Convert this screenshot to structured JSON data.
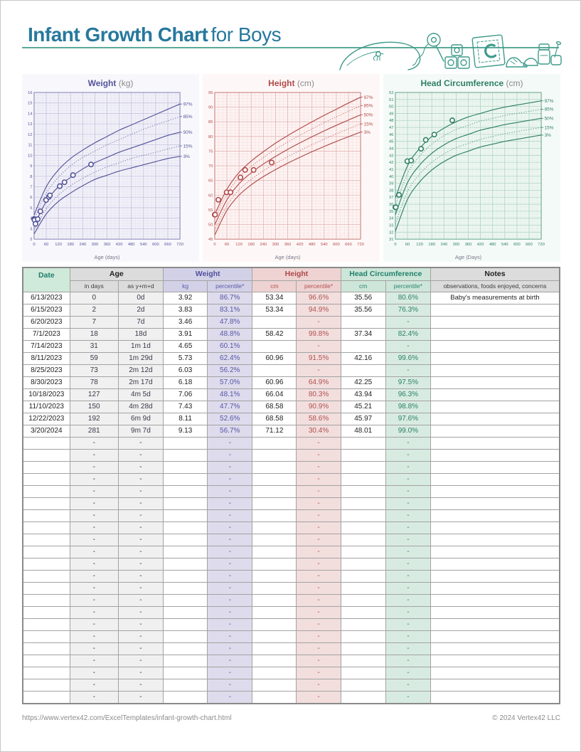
{
  "page": {
    "title_bold": "Infant Growth Chart",
    "title_rest": "for Boys",
    "footer_url": "https://www.vertex42.com/ExcelTemplates/infant-growth-chart.html",
    "footer_copyright": "© 2024 Vertex42 LLC",
    "accent_color": "#27789d",
    "rule_color": "#5cab99",
    "illustration": "baby toys line art: pillow with bird, rattle, alphabet blocks with letter C, baby shoes, food jars with spoon"
  },
  "chart_data": [
    {
      "type": "line",
      "id": "weight",
      "title": "Weight",
      "unit": "(kg)",
      "xlabel": "Age (days)",
      "xlim": [
        0,
        720
      ],
      "x_major": 60,
      "x_minor": 20,
      "ylim": [
        2,
        16
      ],
      "y_major": 1,
      "y_minor": 0.25,
      "color": "#54549a",
      "grid_minor": "#e4e3f1",
      "grid_major": "#c5c3de",
      "plot_bg": "#f1f0f8",
      "panel_bg": "#f8f7fb",
      "legend_position": "right",
      "x_curve": [
        0,
        60,
        120,
        180,
        240,
        300,
        360,
        420,
        480,
        540,
        600,
        660,
        720
      ],
      "series": [
        {
          "name": "97%",
          "style": "solid",
          "values": [
            4.3,
            7.0,
            8.6,
            9.7,
            10.5,
            11.2,
            11.8,
            12.4,
            12.9,
            13.4,
            13.9,
            14.4,
            14.9
          ]
        },
        {
          "name": "85%",
          "style": "dotted",
          "values": [
            3.9,
            6.4,
            7.9,
            9.0,
            9.8,
            10.4,
            11.0,
            11.5,
            12.0,
            12.5,
            12.9,
            13.3,
            13.7
          ]
        },
        {
          "name": "50%",
          "style": "solid",
          "values": [
            3.3,
            5.6,
            7.0,
            7.9,
            8.7,
            9.3,
            9.8,
            10.3,
            10.7,
            11.1,
            11.5,
            11.9,
            12.2
          ]
        },
        {
          "name": "15%",
          "style": "dotted",
          "values": [
            2.9,
            4.9,
            6.2,
            7.1,
            7.8,
            8.4,
            8.9,
            9.3,
            9.7,
            10.0,
            10.3,
            10.6,
            10.9
          ]
        },
        {
          "name": "3%",
          "style": "solid",
          "values": [
            2.5,
            4.4,
            5.6,
            6.4,
            7.1,
            7.7,
            8.1,
            8.5,
            8.8,
            9.1,
            9.4,
            9.7,
            9.9
          ]
        }
      ],
      "points": {
        "x": [
          0,
          2,
          7,
          18,
          31,
          59,
          73,
          78,
          127,
          150,
          192,
          281
        ],
        "y": [
          3.92,
          3.83,
          3.46,
          3.91,
          4.65,
          5.73,
          6.03,
          6.18,
          7.06,
          7.43,
          8.11,
          9.13
        ]
      }
    },
    {
      "type": "line",
      "id": "height",
      "title": "Height",
      "unit": "(cm)",
      "xlabel": "Age (days)",
      "xlim": [
        0,
        720
      ],
      "x_major": 60,
      "x_minor": 20,
      "ylim": [
        45,
        95
      ],
      "y_major": 5,
      "y_minor": 1,
      "color": "#b14a4a",
      "grid_minor": "#f5dcdb",
      "grid_major": "#e3b7b6",
      "plot_bg": "#fdf4f3",
      "panel_bg": "#fdf8f7",
      "legend_position": "right",
      "x_curve": [
        0,
        60,
        120,
        180,
        240,
        300,
        360,
        420,
        480,
        540,
        600,
        660,
        720
      ],
      "series": [
        {
          "name": "97%",
          "style": "solid",
          "values": [
            53.4,
            62.0,
            67.7,
            71.6,
            74.8,
            77.7,
            80.3,
            82.7,
            85.0,
            87.2,
            89.3,
            91.4,
            93.4
          ]
        },
        {
          "name": "85%",
          "style": "dotted",
          "values": [
            51.8,
            60.4,
            66.0,
            69.8,
            72.9,
            75.6,
            78.1,
            80.4,
            82.6,
            84.7,
            86.7,
            88.6,
            90.5
          ]
        },
        {
          "name": "50%",
          "style": "solid",
          "values": [
            49.9,
            58.4,
            63.9,
            67.6,
            70.6,
            73.2,
            75.6,
            77.8,
            79.9,
            81.9,
            83.8,
            85.6,
            87.4
          ]
        },
        {
          "name": "15%",
          "style": "dotted",
          "values": [
            48.0,
            56.4,
            61.8,
            65.4,
            68.3,
            70.8,
            73.1,
            75.2,
            77.2,
            79.1,
            80.9,
            82.6,
            84.3
          ]
        },
        {
          "name": "3%",
          "style": "solid",
          "values": [
            46.4,
            54.8,
            60.0,
            63.5,
            66.3,
            68.7,
            70.9,
            72.9,
            74.8,
            76.6,
            78.3,
            79.9,
            81.5
          ]
        }
      ],
      "points": {
        "x": [
          0,
          2,
          18,
          59,
          78,
          127,
          150,
          192,
          281
        ],
        "y": [
          53.34,
          53.34,
          58.42,
          60.96,
          60.96,
          66.04,
          68.58,
          68.58,
          71.12
        ]
      }
    },
    {
      "type": "line",
      "id": "head",
      "title": "Head Circumference",
      "unit": "(cm)",
      "xlabel": "Age (Days)",
      "xlim": [
        0,
        720
      ],
      "x_major": 60,
      "x_minor": 20,
      "ylim": [
        31,
        52
      ],
      "y_major": 1,
      "y_minor": 0.25,
      "color": "#2e7f66",
      "grid_minor": "#dceee4",
      "grid_major": "#afd4c4",
      "plot_bg": "#eff7f2",
      "panel_bg": "#f4faf7",
      "legend_position": "right",
      "x_curve": [
        0,
        60,
        120,
        180,
        240,
        300,
        360,
        420,
        480,
        540,
        600,
        660,
        720
      ],
      "series": [
        {
          "name": "97%",
          "style": "solid",
          "values": [
            36.9,
            41.5,
            44.0,
            45.7,
            46.9,
            47.8,
            48.5,
            49.0,
            49.5,
            49.9,
            50.2,
            50.5,
            50.8
          ]
        },
        {
          "name": "85%",
          "style": "dotted",
          "values": [
            35.8,
            40.4,
            42.9,
            44.6,
            45.8,
            46.7,
            47.3,
            47.9,
            48.3,
            48.7,
            49.0,
            49.3,
            49.6
          ]
        },
        {
          "name": "50%",
          "style": "solid",
          "values": [
            34.5,
            39.1,
            41.6,
            43.3,
            44.5,
            45.4,
            46.0,
            46.6,
            47.0,
            47.4,
            47.7,
            48.0,
            48.3
          ]
        },
        {
          "name": "15%",
          "style": "dotted",
          "values": [
            33.2,
            37.8,
            40.3,
            42.0,
            43.2,
            44.1,
            44.7,
            45.3,
            45.7,
            46.1,
            46.4,
            46.7,
            47.0
          ]
        },
        {
          "name": "3%",
          "style": "solid",
          "values": [
            32.1,
            36.7,
            39.2,
            40.9,
            42.1,
            43.0,
            43.6,
            44.2,
            44.6,
            45.0,
            45.3,
            45.6,
            45.9
          ]
        }
      ],
      "points": {
        "x": [
          0,
          2,
          18,
          59,
          78,
          127,
          150,
          192,
          281
        ],
        "y": [
          35.56,
          35.56,
          37.34,
          42.16,
          42.25,
          43.94,
          45.21,
          45.97,
          48.01
        ]
      }
    }
  ],
  "table": {
    "header": {
      "date": "Date",
      "age": "Age",
      "age_sub": [
        "in days",
        "as y+m+d"
      ],
      "weight": "Weight",
      "weight_sub": [
        "kg",
        "percentile*"
      ],
      "height": "Height",
      "height_sub": [
        "cm",
        "percentile*"
      ],
      "head": "Head Circumference",
      "head_sub": [
        "cm",
        "percentile*"
      ],
      "notes": "Notes",
      "notes_sub": "observations, foods enjoyed, concerns"
    },
    "rows": [
      [
        "6/13/2023",
        "0",
        "0d",
        "3.92",
        "86.7%",
        "53.34",
        "96.6%",
        "35.56",
        "80.6%",
        "Baby's measurements at birth"
      ],
      [
        "6/15/2023",
        "2",
        "2d",
        "3.83",
        "83.1%",
        "53.34",
        "94.9%",
        "35.56",
        "76.3%",
        ""
      ],
      [
        "6/20/2023",
        "7",
        "7d",
        "3.46",
        "47.8%",
        "",
        "-",
        "",
        "-",
        ""
      ],
      [
        "7/1/2023",
        "18",
        "18d",
        "3.91",
        "48.8%",
        "58.42",
        "99.8%",
        "37.34",
        "82.4%",
        ""
      ],
      [
        "7/14/2023",
        "31",
        "1m 1d",
        "4.65",
        "60.1%",
        "",
        "-",
        "",
        "-",
        ""
      ],
      [
        "8/11/2023",
        "59",
        "1m 29d",
        "5.73",
        "62.4%",
        "60.96",
        "91.5%",
        "42.16",
        "99.6%",
        ""
      ],
      [
        "8/25/2023",
        "73",
        "2m 12d",
        "6.03",
        "56.2%",
        "",
        "-",
        "",
        "-",
        ""
      ],
      [
        "8/30/2023",
        "78",
        "2m 17d",
        "6.18",
        "57.0%",
        "60.96",
        "64.9%",
        "42.25",
        "97.5%",
        ""
      ],
      [
        "10/18/2023",
        "127",
        "4m 5d",
        "7.06",
        "48.1%",
        "66.04",
        "80.3%",
        "43.94",
        "96.3%",
        ""
      ],
      [
        "11/10/2023",
        "150",
        "4m 28d",
        "7.43",
        "47.7%",
        "68.58",
        "90.9%",
        "45.21",
        "98.8%",
        ""
      ],
      [
        "12/22/2023",
        "192",
        "6m 9d",
        "8.11",
        "52.6%",
        "68.58",
        "58.6%",
        "45.97",
        "97.6%",
        ""
      ],
      [
        "3/20/2024",
        "281",
        "9m 7d",
        "9.13",
        "56.7%",
        "71.12",
        "30.4%",
        "48.01",
        "99.0%",
        ""
      ]
    ],
    "empty_row": [
      "",
      "-",
      "-",
      "",
      "-",
      "",
      "-",
      "",
      "-",
      ""
    ],
    "empty_row_count": 22,
    "colors": {
      "date_header_bg": "#cfe9db",
      "date_header_text": "#20806b",
      "age_header_bg": "#dcdcdc",
      "weight_header_bg": "#d3d1e7",
      "weight_text": "#50509b",
      "weight_cell_bg": "#dddbec",
      "height_header_bg": "#eed3d2",
      "height_text": "#ae4747",
      "height_cell_bg": "#f2dedd",
      "head_header_bg": "#cde6d9",
      "head_text": "#20806b",
      "head_cell_bg": "#d8ebe1",
      "gray_cell_bg": "#f0f0f0"
    }
  }
}
